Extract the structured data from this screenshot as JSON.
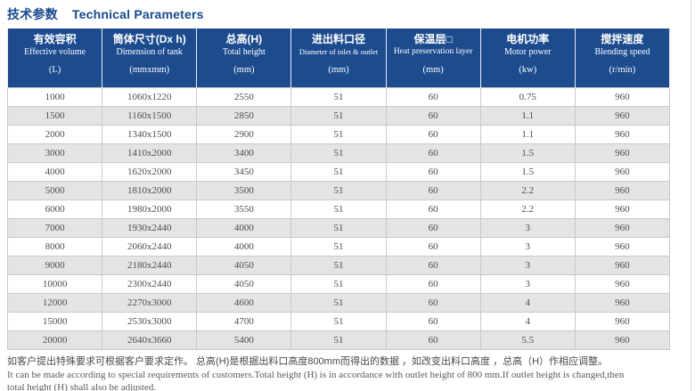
{
  "title": {
    "zh": "技术参数",
    "en": "Technical Parameters"
  },
  "table": {
    "columns": [
      {
        "zh": "有效容积",
        "en": "Effective volume",
        "unit": "(L)"
      },
      {
        "zh": "筒体尺寸(Dx h)",
        "en": "Dimension of tank",
        "unit": "(mmxmm)"
      },
      {
        "zh": "总高(H)",
        "en": "Total height",
        "unit": "(mm)"
      },
      {
        "zh": "进出料口径",
        "en": "Diameter of inlet & outlet",
        "unit": "(mm)"
      },
      {
        "zh": "保温层□",
        "en": "Heat preservation layer",
        "unit": "(mm)"
      },
      {
        "zh": "电机功率",
        "en": "Motor power",
        "unit": "(kw)"
      },
      {
        "zh": "搅拌速度",
        "en": "Blending speed",
        "unit": "(r/min)"
      }
    ],
    "rows": [
      [
        "1000",
        "1060x1220",
        "2550",
        "51",
        "60",
        "0.75",
        "960"
      ],
      [
        "1500",
        "1160x1500",
        "2850",
        "51",
        "60",
        "1.1",
        "960"
      ],
      [
        "2000",
        "1340x1500",
        "2900",
        "51",
        "60",
        "1.1",
        "960"
      ],
      [
        "3000",
        "1410x2000",
        "3400",
        "51",
        "60",
        "1.5",
        "960"
      ],
      [
        "4000",
        "1620x2000",
        "3450",
        "51",
        "60",
        "1.5",
        "960"
      ],
      [
        "5000",
        "1810x2000",
        "3500",
        "51",
        "60",
        "2.2",
        "960"
      ],
      [
        "6000",
        "1980x2000",
        "3550",
        "51",
        "60",
        "2.2",
        "960"
      ],
      [
        "7000",
        "1930x2440",
        "4000",
        "51",
        "60",
        "3",
        "960"
      ],
      [
        "8000",
        "2060x2440",
        "4000",
        "51",
        "60",
        "3",
        "960"
      ],
      [
        "9000",
        "2180x2440",
        "4050",
        "51",
        "60",
        "3",
        "960"
      ],
      [
        "10000",
        "2300x2440",
        "4050",
        "51",
        "60",
        "3",
        "960"
      ],
      [
        "12000",
        "2270x3000",
        "4600",
        "51",
        "60",
        "4",
        "960"
      ],
      [
        "15000",
        "2530x3000",
        "4700",
        "51",
        "60",
        "4",
        "960"
      ],
      [
        "20000",
        "2640x3660",
        "5400",
        "51",
        "60",
        "5.5",
        "960"
      ]
    ]
  },
  "notes": {
    "zh": "如客户提出特殊要求可根据客户要求定作。 总高(H)是根据出料口高度800mm而得出的数据 ，如改变出料口高度 ，总高（H）作相应调整。",
    "en1": "It can be made according to special requirements of customers.Total height (H) is in accordance with outlet height of 800 mm.If outlet height is changed,then",
    "en2": "total height (H) shall also be adjusted."
  },
  "colors": {
    "header_bg": "#1c4b8e",
    "title_text": "#164a8e",
    "alt_row_bg": "#e4e4e4",
    "cell_border": "#c9c9c9",
    "cell_text": "#4d4d4d"
  }
}
